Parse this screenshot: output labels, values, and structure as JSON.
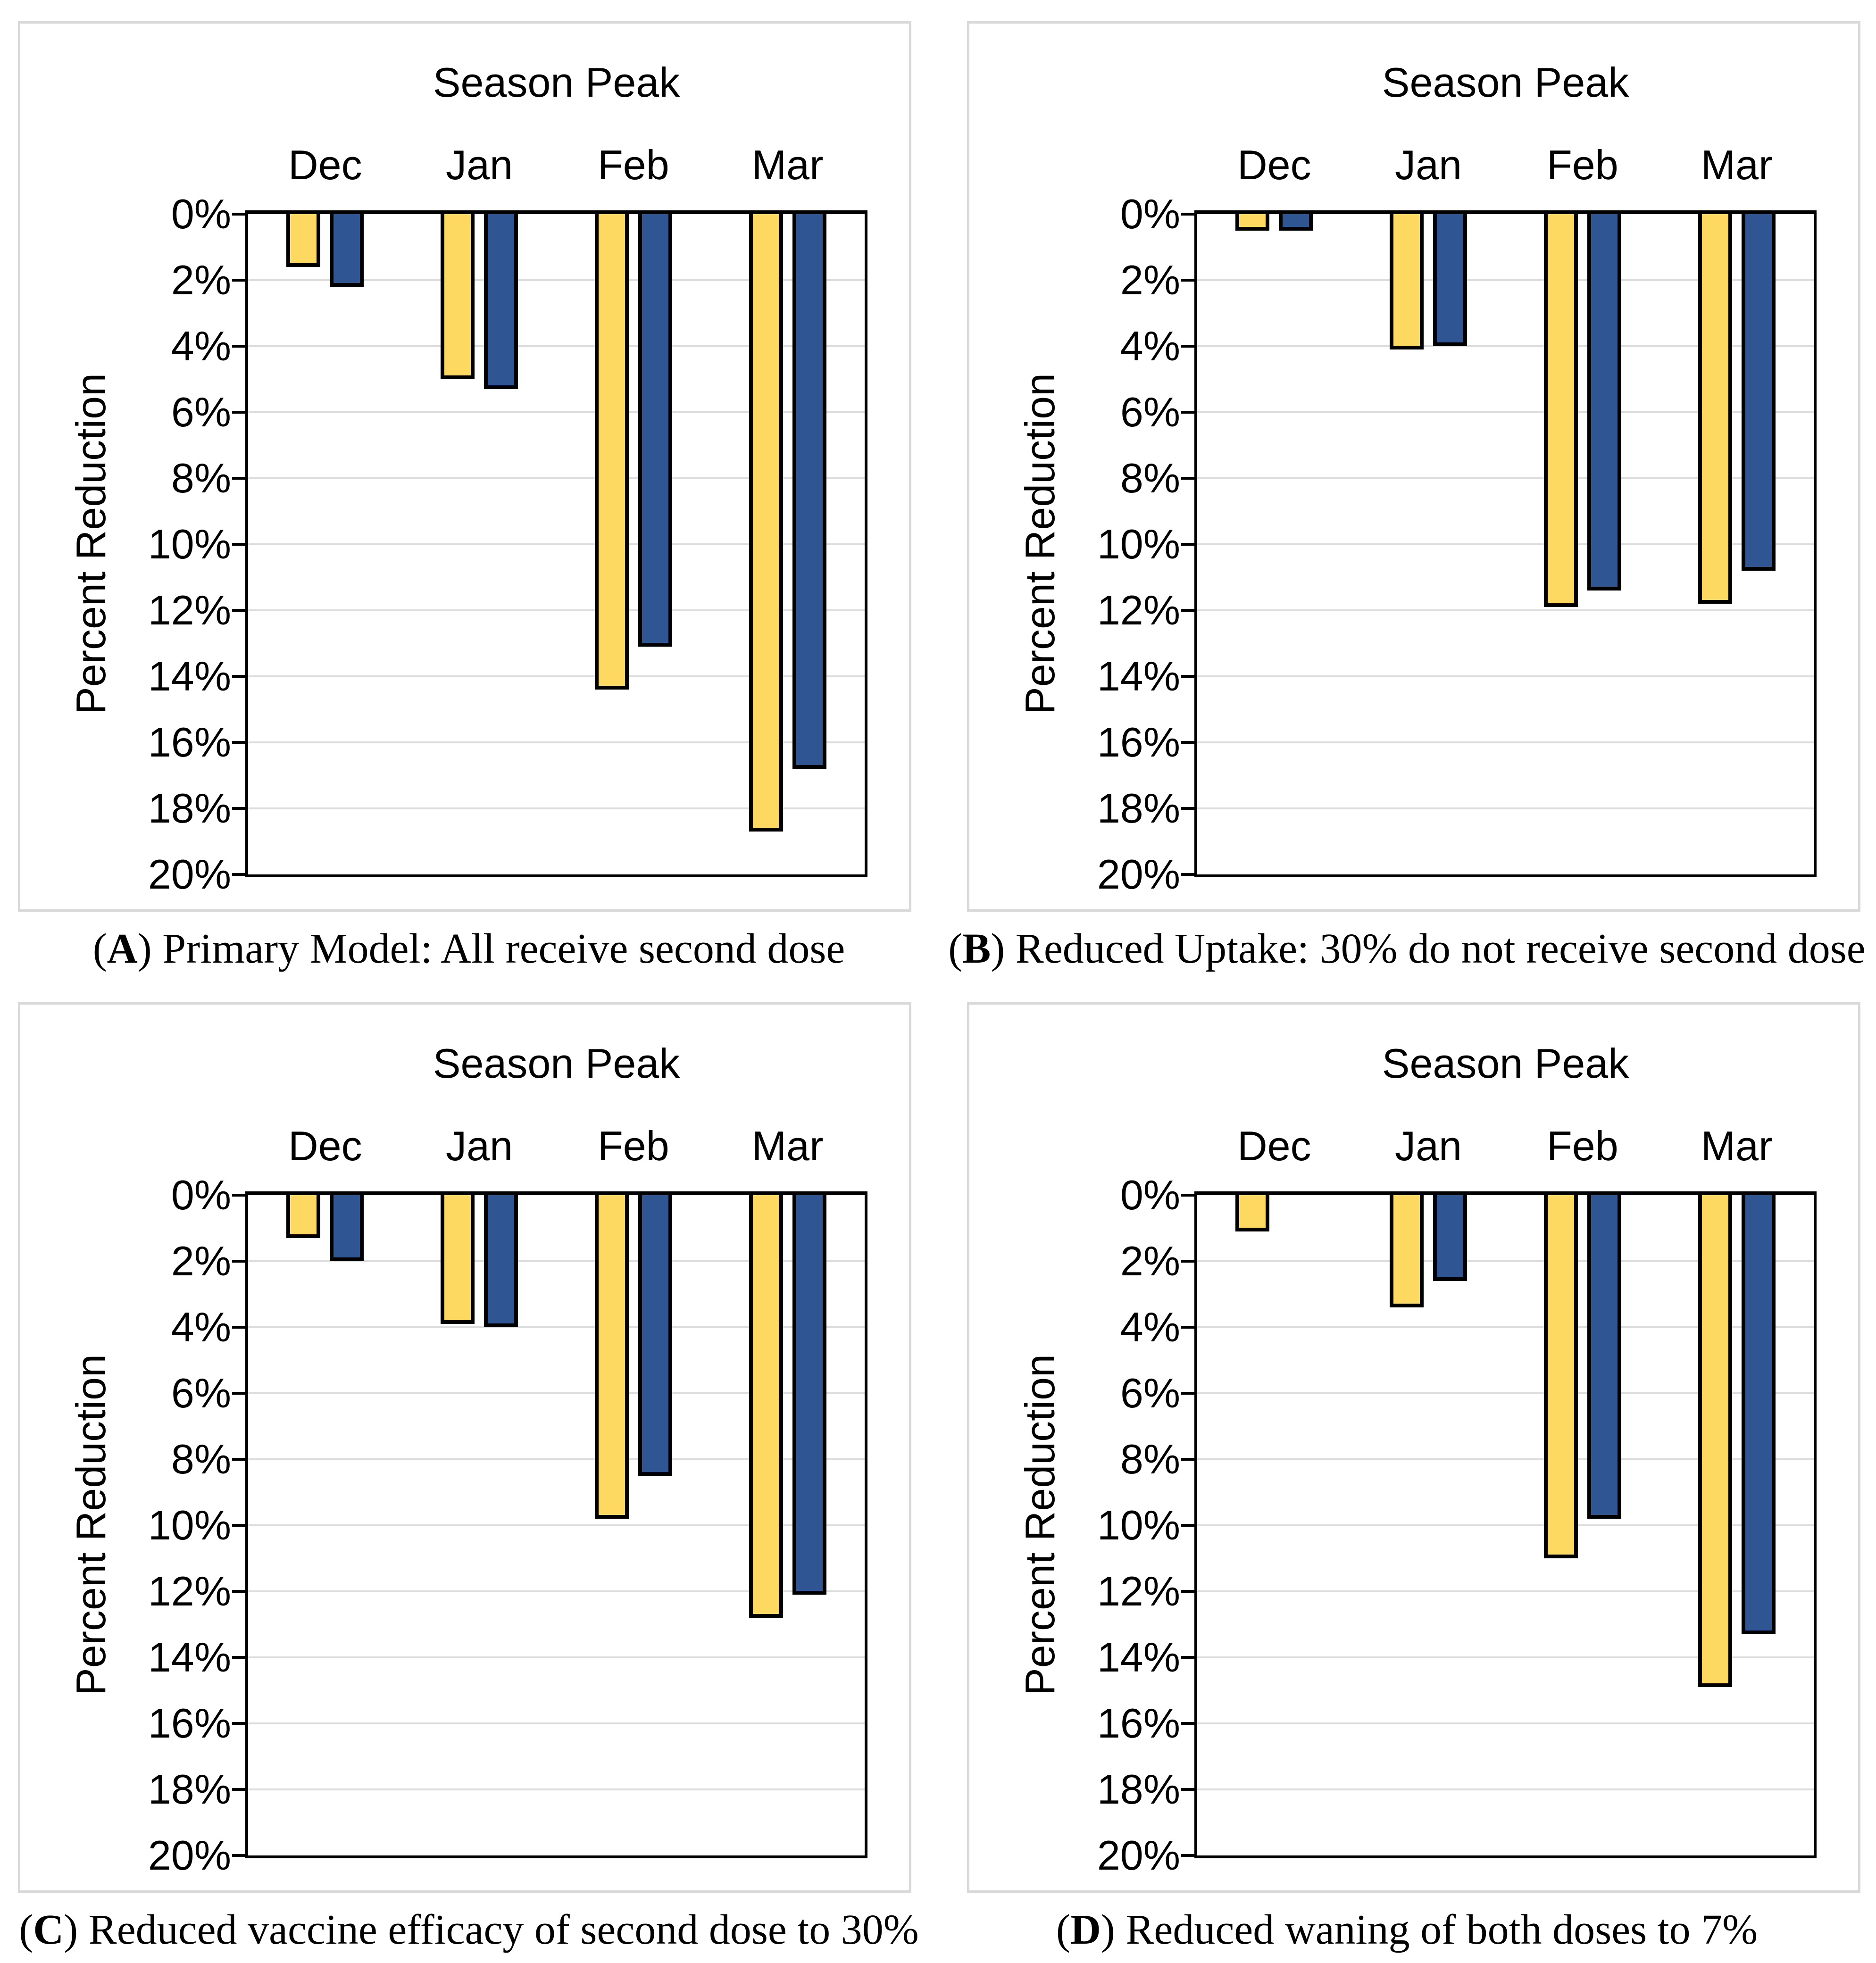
{
  "figure": {
    "axis_title": "Season Peak",
    "y_axis_label": "Percent Reduction",
    "categories": [
      "Dec",
      "Jan",
      "Feb",
      "Mar"
    ],
    "y_ticks": [
      "0%",
      "2%",
      "4%",
      "6%",
      "8%",
      "10%",
      "12%",
      "14%",
      "16%",
      "18%",
      "20%"
    ],
    "colors": {
      "yellow_bar": "#FED961",
      "blue_bar": "#2F5592",
      "bar_outline": "#000000",
      "gridline": "#DCDCDC",
      "panel_border": "#D9D9D9"
    },
    "caption_open_paren": "(",
    "caption_close_paren": ") "
  },
  "chart_data": [
    {
      "type": "bar",
      "panel_label": "A",
      "caption": "Primary Model: All receive second dose",
      "title": "Season Peak",
      "xlabel": "Season Peak",
      "ylabel": "Percent Reduction",
      "categories": [
        "Dec",
        "Jan",
        "Feb",
        "Mar"
      ],
      "ylim": [
        0,
        20
      ],
      "y_inverted": true,
      "y_unit": "percent",
      "series": [
        {
          "name": "yellow",
          "color": "#FED961",
          "values": [
            1.6,
            5.0,
            14.4,
            18.7
          ]
        },
        {
          "name": "blue",
          "color": "#2F5592",
          "values": [
            2.2,
            5.3,
            13.1,
            16.8
          ]
        }
      ]
    },
    {
      "type": "bar",
      "panel_label": "B",
      "caption": "Reduced Uptake: 30% do not receive second dose",
      "title": "Season Peak",
      "xlabel": "Season Peak",
      "ylabel": "Percent Reduction",
      "categories": [
        "Dec",
        "Jan",
        "Feb",
        "Mar"
      ],
      "ylim": [
        0,
        20
      ],
      "y_inverted": true,
      "y_unit": "percent",
      "series": [
        {
          "name": "yellow",
          "color": "#FED961",
          "values": [
            0.5,
            4.1,
            11.9,
            11.8
          ]
        },
        {
          "name": "blue",
          "color": "#2F5592",
          "values": [
            0.5,
            4.0,
            11.4,
            10.8
          ]
        }
      ]
    },
    {
      "type": "bar",
      "panel_label": "C",
      "caption": "Reduced vaccine efficacy of second dose to 30%",
      "title": "Season Peak",
      "xlabel": "Season Peak",
      "ylabel": "Percent Reduction",
      "categories": [
        "Dec",
        "Jan",
        "Feb",
        "Mar"
      ],
      "ylim": [
        0,
        20
      ],
      "y_inverted": true,
      "y_unit": "percent",
      "series": [
        {
          "name": "yellow",
          "color": "#FED961",
          "values": [
            1.3,
            3.9,
            9.8,
            12.8
          ]
        },
        {
          "name": "blue",
          "color": "#2F5592",
          "values": [
            2.0,
            4.0,
            8.5,
            12.1
          ]
        }
      ]
    },
    {
      "type": "bar",
      "panel_label": "D",
      "caption": "Reduced waning of both doses to 7%",
      "title": "Season Peak",
      "xlabel": "Season Peak",
      "ylabel": "Percent Reduction",
      "categories": [
        "Dec",
        "Jan",
        "Feb",
        "Mar"
      ],
      "ylim": [
        0,
        20
      ],
      "y_inverted": true,
      "y_unit": "percent",
      "series": [
        {
          "name": "yellow",
          "color": "#FED961",
          "values": [
            1.1,
            3.4,
            11.0,
            14.9
          ]
        },
        {
          "name": "blue",
          "color": "#2F5592",
          "values": [
            null,
            2.6,
            9.8,
            13.3
          ]
        }
      ]
    }
  ]
}
